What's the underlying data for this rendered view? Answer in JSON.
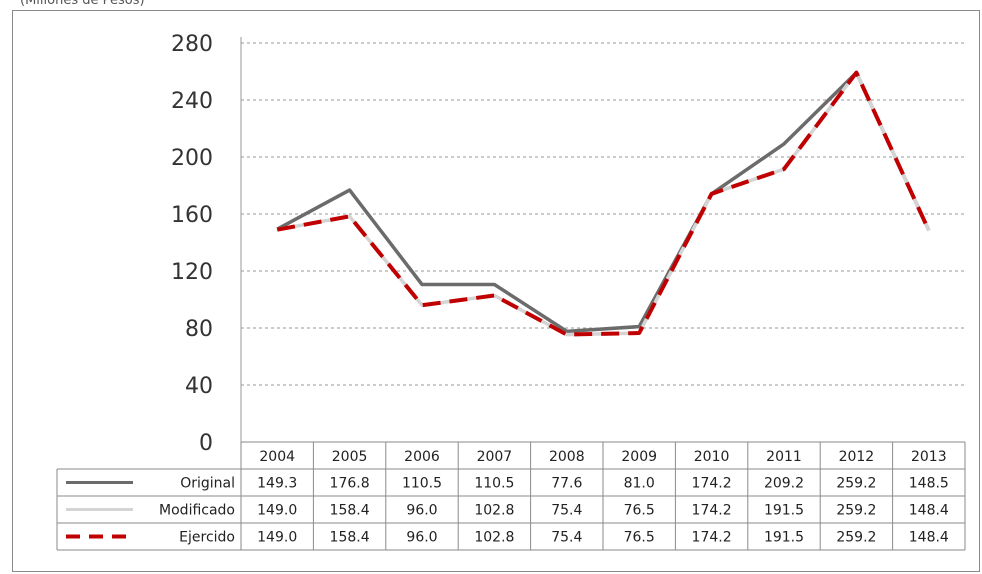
{
  "caption": "(Millones de Pesos)",
  "chart_data": {
    "type": "line",
    "title": "",
    "xlabel": "",
    "ylabel": "",
    "ylim": [
      0,
      280
    ],
    "yticks": [
      0,
      40,
      80,
      120,
      160,
      200,
      240,
      280
    ],
    "grid": true,
    "legend": "table-below",
    "categories": [
      "2004",
      "2005",
      "2006",
      "2007",
      "2008",
      "2009",
      "2010",
      "2011",
      "2012",
      "2013"
    ],
    "series": [
      {
        "name": "Original",
        "values": [
          149.3,
          176.8,
          110.5,
          110.5,
          77.6,
          81.0,
          174.2,
          209.2,
          259.2,
          148.5
        ],
        "labels": [
          "149.3",
          "176.8",
          "110.5",
          "110.5",
          "77.6",
          "81.0",
          "174.2",
          "209.2",
          "259.2",
          "148.5"
        ],
        "color": "#6b6b6b",
        "style": "solid"
      },
      {
        "name": "Modificado",
        "values": [
          149.0,
          158.4,
          96.0,
          102.8,
          75.4,
          76.5,
          174.2,
          191.5,
          259.2,
          148.4
        ],
        "labels": [
          "149.0",
          "158.4",
          "96.0",
          "102.8",
          "75.4",
          "76.5",
          "174.2",
          "191.5",
          "259.2",
          "148.4"
        ],
        "color": "#d4d4d4",
        "style": "solid"
      },
      {
        "name": "Ejercido",
        "values": [
          149.0,
          158.4,
          96.0,
          102.8,
          75.4,
          76.5,
          174.2,
          191.5,
          259.2,
          148.4
        ],
        "labels": [
          "149.0",
          "158.4",
          "96.0",
          "102.8",
          "75.4",
          "76.5",
          "174.2",
          "191.5",
          "259.2",
          "148.4"
        ],
        "color": "#c00000",
        "style": "dashed"
      }
    ]
  }
}
